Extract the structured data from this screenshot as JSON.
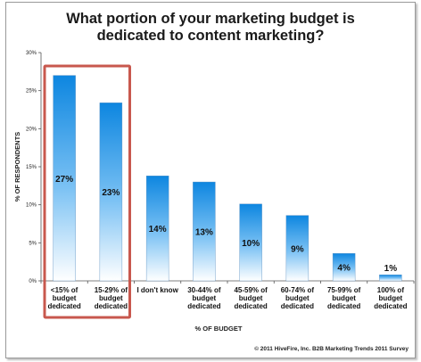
{
  "chart_data": {
    "type": "bar",
    "title_lines": [
      "What portion of your marketing budget is",
      "dedicated to content marketing?"
    ],
    "xlabel": "% OF BUDGET",
    "ylabel": "% OF RESPONDENTS",
    "ylim": [
      0,
      30
    ],
    "yticks": [
      "0%",
      "5%",
      "10%",
      "15%",
      "20%",
      "25%",
      "30%"
    ],
    "categories": [
      [
        "<15% of",
        "budget",
        "dedicated"
      ],
      [
        "15-29%  of",
        "budget",
        "dedicated"
      ],
      [
        "I don't know"
      ],
      [
        "30-44% of",
        "budget",
        "dedicated"
      ],
      [
        "45-59% of",
        "budget",
        "dedicated"
      ],
      [
        "60-74% of",
        "budget",
        "dedicated"
      ],
      [
        "75-99% of",
        "budget",
        "dedicated"
      ],
      [
        "100% of",
        "budget",
        "dedicated"
      ]
    ],
    "values": [
      27,
      23.4,
      13.8,
      13,
      10.1,
      8.6,
      3.6,
      0.8
    ],
    "value_labels": [
      "27%",
      "23%",
      "14%",
      "13%",
      "10%",
      "9%",
      "4%",
      "1%"
    ],
    "grid": false,
    "highlight": {
      "categories": [
        0,
        1
      ],
      "color": "#c8584e"
    },
    "bar_gradient": [
      "#0d86e0",
      "#ffffff"
    ]
  },
  "footer": "© 2011 HiveFire, Inc. B2B Marketing Trends 2011 Survey"
}
